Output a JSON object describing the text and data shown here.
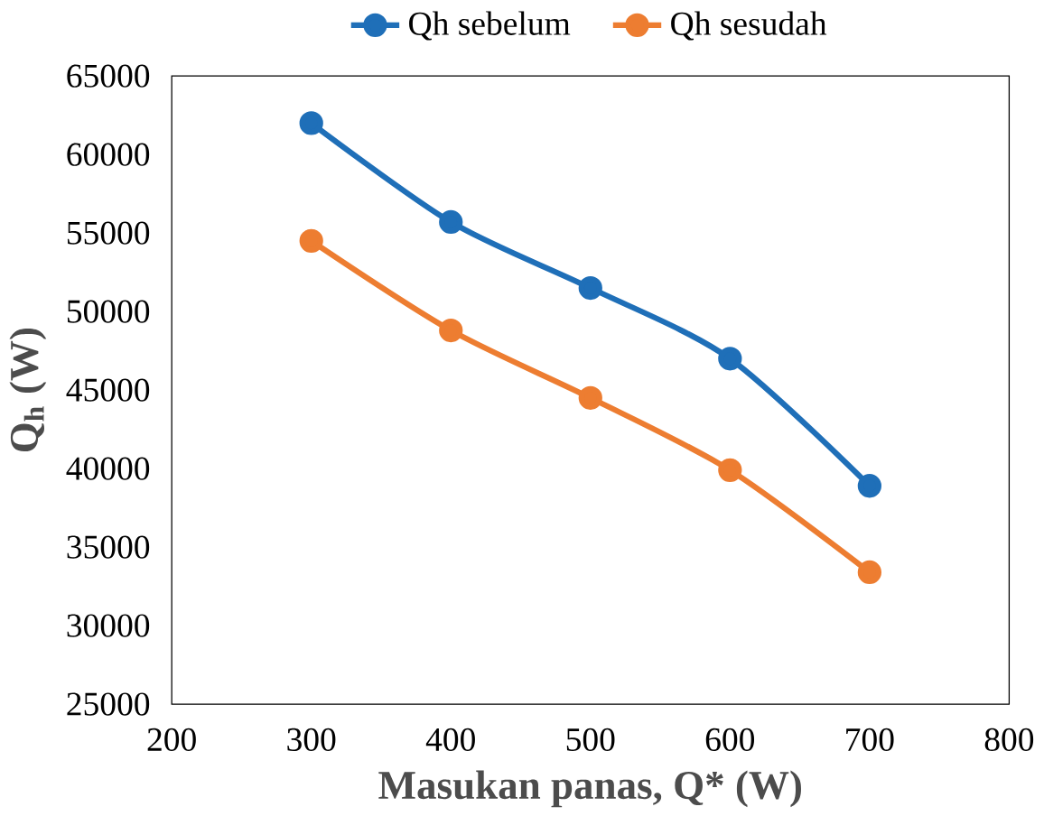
{
  "chart_data": {
    "type": "line",
    "xlabel": "Masukan panas, Q* (W)",
    "ylabel": "Q$_{h}$ (W)",
    "x": [
      300,
      400,
      500,
      600,
      700
    ],
    "series": [
      {
        "name": "Qh sebelum",
        "color": "#1f6fb8",
        "values": [
          62000,
          55700,
          51500,
          47000,
          38900
        ]
      },
      {
        "name": "Qh sesudah",
        "color": "#ed7d31",
        "values": [
          54500,
          48800,
          44500,
          39900,
          33400
        ]
      }
    ],
    "xlim": [
      200,
      800
    ],
    "xticks": [
      200,
      300,
      400,
      500,
      600,
      700,
      800
    ],
    "ylim": [
      25000,
      65000
    ],
    "yticks": [
      25000,
      30000,
      35000,
      40000,
      45000,
      50000,
      55000,
      60000,
      65000
    ],
    "grid": false,
    "legend": "top",
    "marker": "circle",
    "line_style": "solid"
  }
}
